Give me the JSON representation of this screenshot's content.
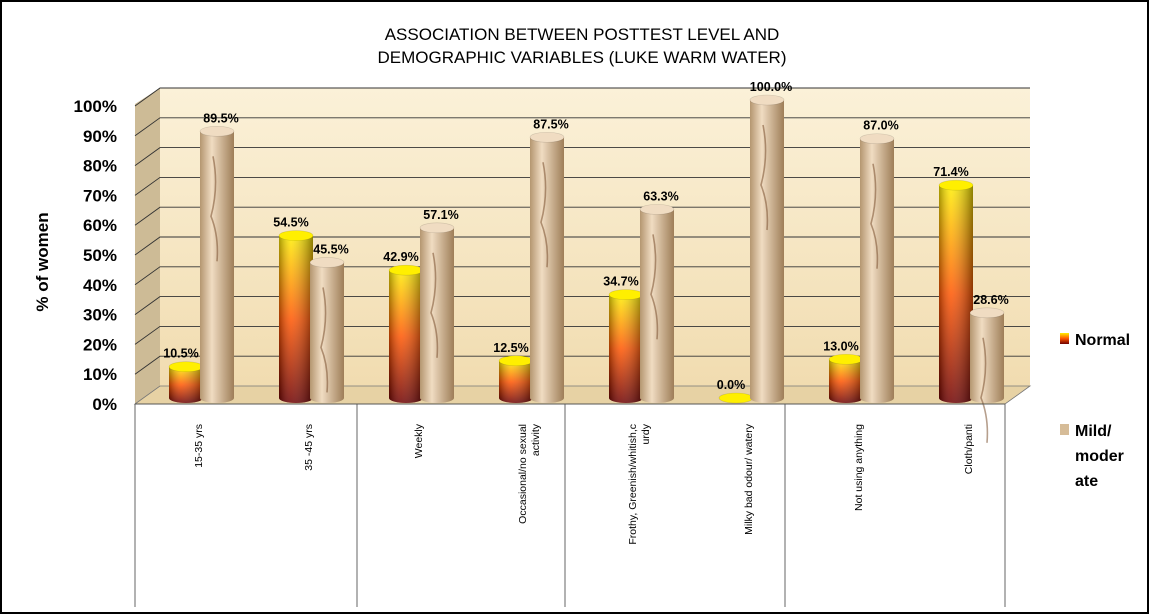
{
  "chart_data": {
    "type": "bar",
    "title_lines": [
      "ASSOCIATION BETWEEN POSTTEST LEVEL  AND",
      "DEMOGRAPHIC VARIABLES (LUKE WARM WATER)"
    ],
    "ylabel": "% of women",
    "ylim": [
      0,
      100
    ],
    "y_ticks": [
      "0%",
      "10%",
      "20%",
      "30%",
      "40%",
      "50%",
      "60%",
      "70%",
      "80%",
      "90%",
      "100%"
    ],
    "grid": true,
    "legend_position": "right",
    "categories": [
      [
        "15-35 yrs"
      ],
      [
        "35 -45 yrs"
      ],
      [
        "Weekly"
      ],
      [
        "Occasional/no sexual",
        "activity"
      ],
      [
        "Frothy, Greenish/whitish,c",
        "urdy"
      ],
      [
        "Milky  bad odour/ watery"
      ],
      [
        "Not using anything"
      ],
      [
        "Cloth/panti"
      ]
    ],
    "series": [
      {
        "name": "Normal",
        "values": [
          10.5,
          54.5,
          42.9,
          12.5,
          34.7,
          0.0,
          13.0,
          71.4
        ],
        "labels": [
          "10.5%",
          "54.5%",
          "42.9%",
          "12.5%",
          "34.7%",
          "0.0%",
          "13.0%",
          "71.4%"
        ],
        "color": "#e8a000"
      },
      {
        "name": "Mild/ moder ate",
        "legend_lines": [
          "Mild/",
          "moder",
          "ate"
        ],
        "values": [
          89.5,
          45.5,
          57.1,
          87.5,
          63.3,
          100.0,
          87.0,
          28.6
        ],
        "labels": [
          "89.5%",
          "45.5%",
          "57.1%",
          "87.5%",
          "63.3%",
          "100.0%",
          "87.0%",
          "28.6%"
        ],
        "color": "#d6bc98"
      }
    ],
    "colors": {
      "wall": "#f7e6c0",
      "floor": "#ead4a6",
      "grid": "#333333",
      "cyl_normal_top": "#ffef00",
      "cyl_normal_mid": "#ff5500",
      "cyl_normal_bottom": "#6e0000",
      "cyl_mild_light": "#f0dcc2",
      "cyl_mild_dark": "#b49670"
    }
  }
}
